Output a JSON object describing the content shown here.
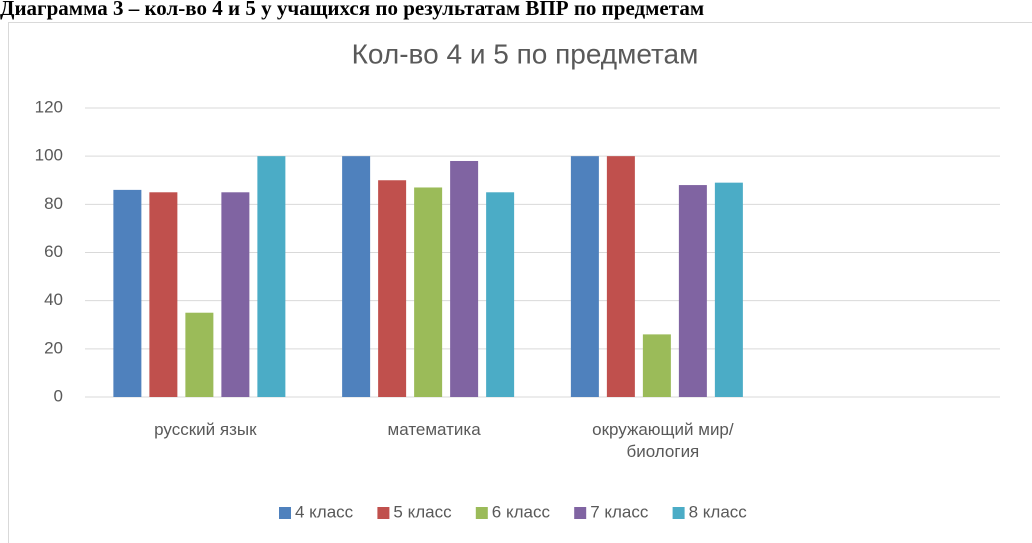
{
  "heading": "Диаграмма 3 – кол-во 4 и 5 у учащихся по результатам ВПР по предметам",
  "chart_data": {
    "type": "bar",
    "title": "Кол-во 4 и 5 по предметам",
    "categories": [
      "русский язык",
      "математика",
      "окружающий мир/биология",
      null
    ],
    "series": [
      {
        "name": "4 класс",
        "color": "#4f81bd",
        "values": [
          86,
          100,
          100,
          null
        ]
      },
      {
        "name": "5 класс",
        "color": "#c0504d",
        "values": [
          85,
          90,
          100,
          null
        ]
      },
      {
        "name": "6 класс",
        "color": "#9bbb59",
        "values": [
          35,
          87,
          26,
          null
        ]
      },
      {
        "name": "7 класс",
        "color": "#8064a2",
        "values": [
          85,
          98,
          88,
          null
        ]
      },
      {
        "name": "8 класс",
        "color": "#4bacc6",
        "values": [
          100,
          85,
          89,
          null
        ]
      }
    ],
    "ylim": [
      0,
      120
    ],
    "yticks": [
      0,
      20,
      40,
      60,
      80,
      100,
      120
    ],
    "grid": true,
    "legend": "bottom"
  }
}
